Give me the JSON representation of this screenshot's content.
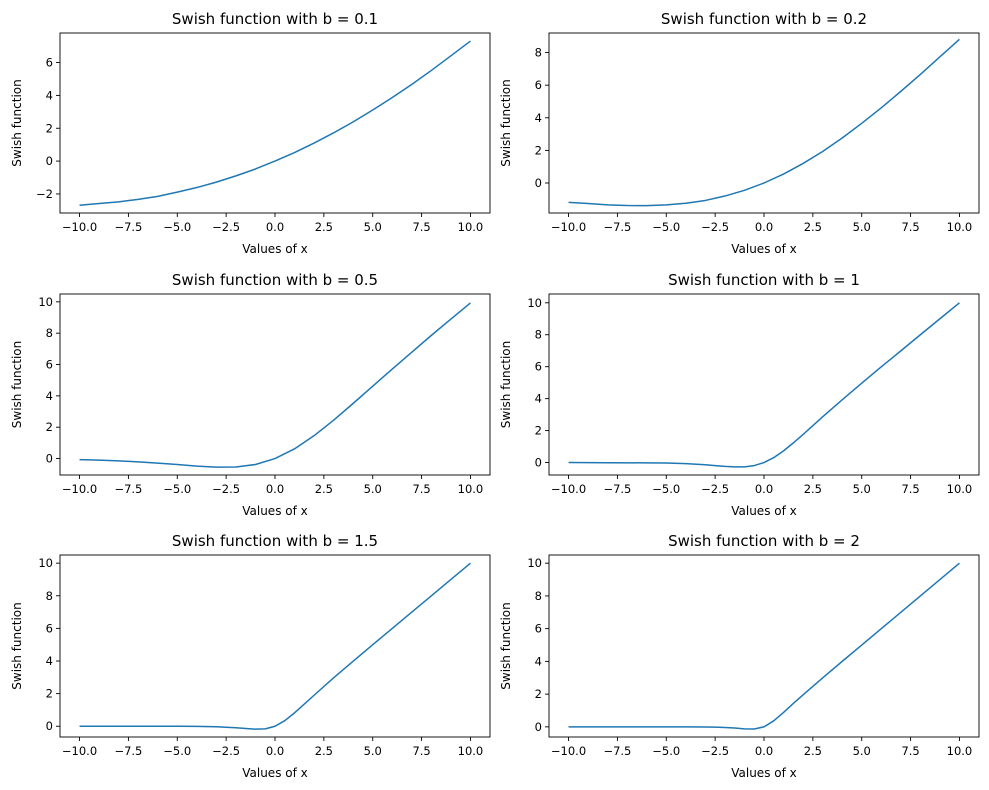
{
  "chart_data": [
    {
      "type": "line",
      "title": "Swish function with b = 0.1",
      "xlabel": "Values of x",
      "ylabel": "Swish function",
      "xlim": [
        -11,
        11
      ],
      "ylim": [
        -3.16,
        7.8
      ],
      "xticks": [
        -10,
        -7.5,
        -5,
        -2.5,
        0,
        2.5,
        5,
        7.5,
        10
      ],
      "xtick_labels": [
        "−10.0",
        "−7.5",
        "−5.0",
        "−2.5",
        "0.0",
        "2.5",
        "5.0",
        "7.5",
        "10.0"
      ],
      "yticks": [
        -2,
        0,
        2,
        4,
        6
      ],
      "ytick_labels": [
        "−2",
        "0",
        "2",
        "4",
        "6"
      ],
      "grid": false,
      "series": [
        {
          "color": "#1f77b4",
          "x": [
            -10,
            -9,
            -8,
            -7,
            -6,
            -5,
            -4,
            -3,
            -2,
            -1,
            0,
            1,
            2,
            3,
            4,
            5,
            6,
            7,
            8,
            9,
            10
          ],
          "y": [
            -2.69,
            -2.58,
            -2.48,
            -2.33,
            -2.15,
            -1.89,
            -1.61,
            -1.28,
            -0.9,
            -0.48,
            0,
            0.52,
            1.1,
            1.72,
            2.39,
            3.11,
            3.87,
            4.67,
            5.52,
            6.41,
            7.31
          ]
        }
      ]
    },
    {
      "type": "line",
      "title": "Swish function with b = 0.2",
      "xlabel": "Values of x",
      "ylabel": "Swish function",
      "xlim": [
        -11,
        11
      ],
      "ylim": [
        -1.84,
        9.2
      ],
      "xticks": [
        -10,
        -7.5,
        -5,
        -2.5,
        0,
        2.5,
        5,
        7.5,
        10
      ],
      "xtick_labels": [
        "−10.0",
        "−7.5",
        "−5.0",
        "−2.5",
        "0.0",
        "2.5",
        "5.0",
        "7.5",
        "10.0"
      ],
      "yticks": [
        0,
        2,
        4,
        6,
        8
      ],
      "ytick_labels": [
        "0",
        "2",
        "4",
        "6",
        "8"
      ],
      "grid": false,
      "series": [
        {
          "color": "#1f77b4",
          "x": [
            -10,
            -9,
            -8,
            -7,
            -6,
            -5,
            -4,
            -3,
            -2,
            -1,
            0,
            1,
            2,
            3,
            4,
            5,
            6,
            7,
            8,
            9,
            10
          ],
          "y": [
            -1.19,
            -1.26,
            -1.34,
            -1.38,
            -1.39,
            -1.34,
            -1.24,
            -1.07,
            -0.8,
            -0.45,
            0,
            0.55,
            1.2,
            1.93,
            2.76,
            3.66,
            4.61,
            5.62,
            6.66,
            7.74,
            8.81
          ]
        }
      ]
    },
    {
      "type": "line",
      "title": "Swish function with b = 0.5",
      "xlabel": "Values of x",
      "ylabel": "Swish function",
      "xlim": [
        -11,
        11
      ],
      "ylim": [
        -1.05,
        10.5
      ],
      "xticks": [
        -10,
        -7.5,
        -5,
        -2.5,
        0,
        2.5,
        5,
        7.5,
        10
      ],
      "xtick_labels": [
        "−10.0",
        "−7.5",
        "−5.0",
        "−2.5",
        "0.0",
        "2.5",
        "5.0",
        "7.5",
        "10.0"
      ],
      "yticks": [
        0,
        2,
        4,
        6,
        8,
        10
      ],
      "ytick_labels": [
        "0",
        "2",
        "4",
        "6",
        "8",
        "10"
      ],
      "grid": false,
      "series": [
        {
          "color": "#1f77b4",
          "x": [
            -10,
            -9,
            -8,
            -7,
            -6,
            -5,
            -4,
            -3,
            -2,
            -1,
            0,
            1,
            2,
            3,
            4,
            5,
            6,
            7,
            8,
            9,
            10
          ],
          "y": [
            -0.07,
            -0.1,
            -0.15,
            -0.21,
            -0.29,
            -0.38,
            -0.48,
            -0.55,
            -0.54,
            -0.38,
            0,
            0.62,
            1.46,
            2.45,
            3.52,
            4.62,
            5.71,
            6.79,
            7.86,
            8.9,
            9.93
          ]
        }
      ]
    },
    {
      "type": "line",
      "title": "Swish function with b = 1",
      "xlabel": "Values of x",
      "ylabel": "Swish function",
      "xlim": [
        -11,
        11
      ],
      "ylim": [
        -0.78,
        10.55
      ],
      "xticks": [
        -10,
        -7.5,
        -5,
        -2.5,
        0,
        2.5,
        5,
        7.5,
        10
      ],
      "xtick_labels": [
        "−10.0",
        "−7.5",
        "−5.0",
        "−2.5",
        "0.0",
        "2.5",
        "5.0",
        "7.5",
        "10.0"
      ],
      "yticks": [
        0,
        2,
        4,
        6,
        8,
        10
      ],
      "ytick_labels": [
        "0",
        "2",
        "4",
        "6",
        "8",
        "10"
      ],
      "grid": false,
      "series": [
        {
          "color": "#1f77b4",
          "x": [
            -10,
            -8,
            -6,
            -5,
            -4,
            -3,
            -2.5,
            -2,
            -1.5,
            -1,
            -0.5,
            0,
            0.5,
            1,
            1.5,
            2,
            3,
            4,
            5,
            6,
            7,
            8,
            9,
            10
          ],
          "y": [
            0,
            -0.01,
            -0.02,
            -0.03,
            -0.07,
            -0.14,
            -0.19,
            -0.24,
            -0.27,
            -0.27,
            -0.19,
            0,
            0.31,
            0.73,
            1.23,
            1.76,
            2.86,
            3.93,
            4.97,
            5.99,
            6.99,
            8,
            9,
            10
          ]
        }
      ]
    },
    {
      "type": "line",
      "title": "Swish function with b = 1.5",
      "xlabel": "Values of x",
      "ylabel": "Swish function",
      "xlim": [
        -11,
        11
      ],
      "ylim": [
        -0.66,
        10.5
      ],
      "xticks": [
        -10,
        -7.5,
        -5,
        -2.5,
        0,
        2.5,
        5,
        7.5,
        10
      ],
      "xtick_labels": [
        "−10.0",
        "−7.5",
        "−5.0",
        "−2.5",
        "0.0",
        "2.5",
        "5.0",
        "7.5",
        "10.0"
      ],
      "yticks": [
        0,
        2,
        4,
        6,
        8,
        10
      ],
      "ytick_labels": [
        "0",
        "2",
        "4",
        "6",
        "8",
        "10"
      ],
      "grid": false,
      "series": [
        {
          "color": "#1f77b4",
          "x": [
            -10,
            -8,
            -6,
            -5,
            -4,
            -3,
            -2.5,
            -2,
            -1.5,
            -1,
            -0.5,
            0,
            0.5,
            1,
            1.5,
            2,
            3,
            4,
            5,
            6,
            7,
            8,
            9,
            10
          ],
          "y": [
            0,
            0,
            0,
            0,
            -0.01,
            -0.03,
            -0.06,
            -0.09,
            -0.14,
            -0.18,
            -0.16,
            0,
            0.34,
            0.82,
            1.36,
            1.9,
            2.97,
            3.99,
            5,
            6,
            7,
            8,
            9,
            10
          ]
        }
      ]
    },
    {
      "type": "line",
      "title": "Swish function with b = 2",
      "xlabel": "Values of x",
      "ylabel": "Swish function",
      "xlim": [
        -11,
        11
      ],
      "ylim": [
        -0.62,
        10.5
      ],
      "xticks": [
        -10,
        -7.5,
        -5,
        -2.5,
        0,
        2.5,
        5,
        7.5,
        10
      ],
      "xtick_labels": [
        "−10.0",
        "−7.5",
        "−5.0",
        "−2.5",
        "0.0",
        "2.5",
        "5.0",
        "7.5",
        "10.0"
      ],
      "yticks": [
        0,
        2,
        4,
        6,
        8,
        10
      ],
      "ytick_labels": [
        "0",
        "2",
        "4",
        "6",
        "8",
        "10"
      ],
      "grid": false,
      "series": [
        {
          "color": "#1f77b4",
          "x": [
            -10,
            -8,
            -6,
            -5,
            -4,
            -3,
            -2.5,
            -2,
            -1.5,
            -1,
            -0.5,
            0,
            0.5,
            1,
            1.5,
            2,
            3,
            4,
            5,
            6,
            7,
            8,
            9,
            10
          ],
          "y": [
            0,
            0,
            0,
            0,
            0,
            -0.01,
            -0.02,
            -0.04,
            -0.07,
            -0.12,
            -0.13,
            0,
            0.37,
            0.88,
            1.43,
            1.96,
            2.99,
            4,
            5,
            6,
            7,
            8,
            9,
            10
          ]
        }
      ]
    }
  ]
}
